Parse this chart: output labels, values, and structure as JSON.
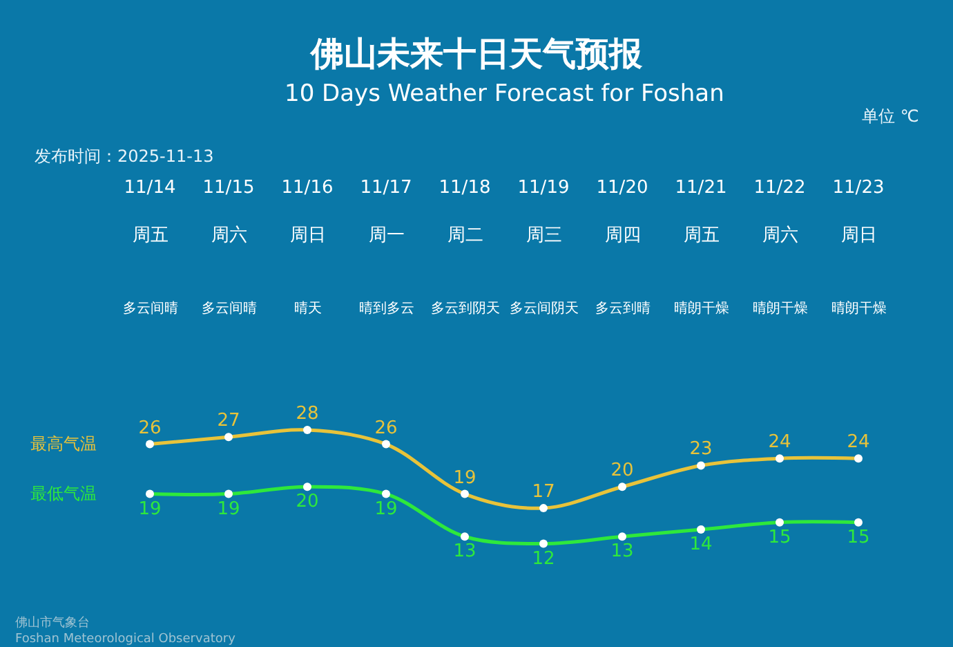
{
  "chart_data": {
    "type": "line",
    "title": "佛山未来十日天气预报",
    "subtitle": "10 Days Weather Forecast for Foshan",
    "categories": [
      "11/14",
      "11/15",
      "11/16",
      "11/17",
      "11/18",
      "11/19",
      "11/20",
      "11/21",
      "11/22",
      "11/23"
    ],
    "series": [
      {
        "name": "最高气温",
        "color": "#e8c33a",
        "values": [
          26,
          27,
          28,
          26,
          19,
          17,
          20,
          23,
          24,
          24
        ]
      },
      {
        "name": "最低气温",
        "color": "#2ee83c",
        "values": [
          19,
          19,
          20,
          19,
          13,
          12,
          13,
          14,
          15,
          15
        ]
      }
    ],
    "annotations": [
      "单位 ℃",
      "发布时间：2025-11-13",
      "佛山市气象台\nFoshan Meteorological Observatory",
      "周五",
      "周六",
      "周日",
      "周一",
      "周二",
      "周三",
      "周四",
      "周五",
      "周六",
      "周日",
      "多云间晴",
      "多云间晴",
      "晴天",
      "晴到多云",
      "多云到阴天",
      "多云间阴天",
      "多云到晴",
      "晴朗干燥",
      "晴朗干燥",
      "晴朗干燥"
    ],
    "data_labels": true,
    "marker": "circle",
    "line_style": "solid",
    "legend": false,
    "grid": false
  }
}
